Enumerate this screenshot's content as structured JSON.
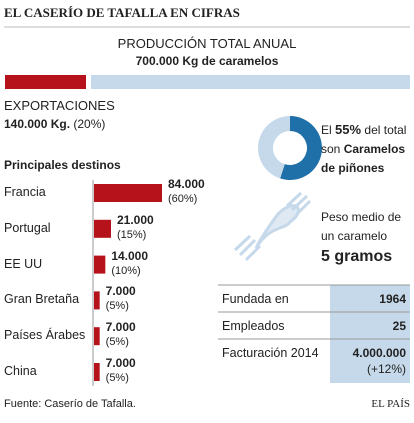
{
  "title": "EL CASERÍO DE TAFALLA EN CIFRAS",
  "chart_data": [
    {
      "type": "split-bar",
      "title": "PRODUCCIÓN TOTAL ANUAL",
      "subtitle": "700.000 Kg de caramelos",
      "series": [
        {
          "name": "EXPORTACIONES",
          "color": "#b5121b",
          "values": [
            140000
          ],
          "value_labels": [
            "140.000 Kg."
          ],
          "share_label": "(20%)"
        },
        {
          "color": "#c5d9ea",
          "values": [
            560000
          ]
        }
      ]
    },
    {
      "type": "bar",
      "title": "Principales destinos",
      "color": "#b5121b",
      "categories": [
        "Francia",
        "Portugal",
        "EE UU",
        "Gran Bretaña",
        "Países Árabes",
        "China"
      ],
      "values": [
        84000,
        21000,
        14000,
        7000,
        7000,
        7000
      ],
      "value_labels": [
        "84.000",
        "21.000",
        "14.000",
        "7.000",
        "7.000",
        "7.000"
      ],
      "share_labels": [
        "(60%)",
        "(15%)",
        "(10%)",
        "(5%)",
        "(5%)",
        "(5%)"
      ]
    },
    {
      "type": "pie",
      "values": [
        55,
        45
      ],
      "colors": [
        "#1f6fa8",
        "#c5d9ea"
      ],
      "value_labels": [
        "55%",
        null
      ],
      "caption": {
        "before": "El",
        "after": "del total son",
        "highlight": "Caramelos de piñones"
      }
    }
  ],
  "weight": {
    "label": "Peso medio de un caramelo",
    "value": "5 gramos"
  },
  "table": {
    "rows": [
      [
        "Fundada en",
        "1964"
      ],
      [
        "Empleados",
        "25"
      ],
      [
        "Facturación 2014",
        "4.000.000",
        "(+12%)"
      ]
    ]
  },
  "source": "Fuente: Caserío de Tafalla.",
  "credit": "EL PAÍS"
}
